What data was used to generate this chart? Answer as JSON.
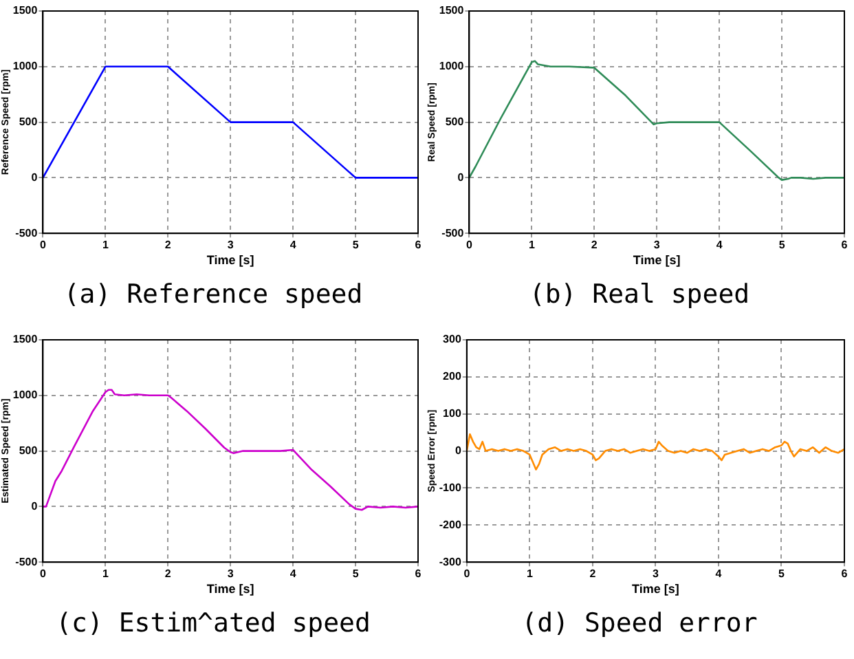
{
  "chart_data": [
    {
      "type": "line",
      "xlabel": "Time [s]",
      "ylabel": "Reference Speed [rpm]",
      "annotations": [
        "(a) Reference speed"
      ],
      "xlim": [
        0,
        6
      ],
      "ylim": [
        -500,
        1500
      ],
      "xticks": [
        0,
        1,
        2,
        3,
        4,
        5,
        6
      ],
      "yticks": [
        -500,
        0,
        500,
        1000,
        1500
      ],
      "grid": true,
      "legend": false,
      "marker": "none",
      "line_style": "solid",
      "series": [
        {
          "color": "#0000ff",
          "x": [
            0,
            1,
            2,
            3,
            4,
            5,
            6
          ],
          "values": [
            0,
            1000,
            1000,
            500,
            500,
            0,
            0
          ]
        }
      ]
    },
    {
      "type": "line",
      "xlabel": "Time [s]",
      "ylabel": "Real Speed [rpm]",
      "annotations": [
        "(b) Real speed"
      ],
      "xlim": [
        0,
        6
      ],
      "ylim": [
        -500,
        1500
      ],
      "xticks": [
        0,
        1,
        2,
        3,
        4,
        5,
        6
      ],
      "yticks": [
        -500,
        0,
        500,
        1000,
        1500
      ],
      "grid": true,
      "legend": false,
      "marker": "none",
      "line_style": "solid",
      "series": [
        {
          "color": "#2e8b57",
          "x": [
            0,
            0.1,
            0.5,
            1.0,
            1.05,
            1.1,
            1.3,
            1.6,
            2.0,
            2.5,
            2.95,
            3.0,
            3.2,
            3.5,
            4.0,
            4.5,
            4.95,
            5.0,
            5.1,
            5.15,
            5.3,
            5.5,
            5.7,
            6.0
          ],
          "values": [
            0,
            100,
            530,
            1040,
            1050,
            1020,
            1000,
            1000,
            990,
            740,
            480,
            490,
            500,
            500,
            500,
            240,
            0,
            -20,
            -10,
            0,
            0,
            -10,
            0,
            0
          ]
        }
      ]
    },
    {
      "type": "line",
      "xlabel": "Time [s]",
      "ylabel": "Estimated Speed [rpm]",
      "annotations": [
        "(c) Estim^ated speed"
      ],
      "xlim": [
        0,
        6
      ],
      "ylim": [
        -500,
        1500
      ],
      "xticks": [
        0,
        1,
        2,
        3,
        4,
        5,
        6
      ],
      "yticks": [
        -500,
        0,
        500,
        1000,
        1500
      ],
      "grid": true,
      "legend": false,
      "marker": "none",
      "line_style": "solid",
      "series": [
        {
          "color": "#cc00cc",
          "x": [
            0,
            0.05,
            0.2,
            0.3,
            0.5,
            0.8,
            1.0,
            1.05,
            1.1,
            1.15,
            1.3,
            1.5,
            1.7,
            2.0,
            2.05,
            2.3,
            2.6,
            2.9,
            3.0,
            3.05,
            3.2,
            3.5,
            3.8,
            4.0,
            4.05,
            4.3,
            4.6,
            4.9,
            5.0,
            5.1,
            5.2,
            5.4,
            5.6,
            5.8,
            6.0
          ],
          "values": [
            0,
            0,
            230,
            320,
            540,
            860,
            1030,
            1050,
            1050,
            1010,
            1000,
            1010,
            1000,
            1000,
            980,
            860,
            700,
            530,
            490,
            480,
            500,
            500,
            500,
            510,
            480,
            330,
            180,
            20,
            -20,
            -30,
            0,
            -10,
            0,
            -10,
            0
          ]
        }
      ]
    },
    {
      "type": "line",
      "xlabel": "Time [s]",
      "ylabel": "Speed Error [rpm]",
      "annotations": [
        "(d) Speed error"
      ],
      "xlim": [
        0,
        6
      ],
      "ylim": [
        -300,
        300
      ],
      "xticks": [
        0,
        1,
        2,
        3,
        4,
        5,
        6
      ],
      "yticks": [
        -300,
        -200,
        -100,
        0,
        100,
        200,
        300
      ],
      "grid": true,
      "legend": false,
      "marker": "none",
      "line_style": "solid",
      "series": [
        {
          "color": "#ff8c00",
          "x": [
            0,
            0.05,
            0.1,
            0.15,
            0.2,
            0.25,
            0.3,
            0.4,
            0.5,
            0.6,
            0.7,
            0.8,
            0.9,
            1.0,
            1.05,
            1.1,
            1.15,
            1.2,
            1.3,
            1.4,
            1.5,
            1.6,
            1.7,
            1.8,
            1.9,
            2.0,
            2.05,
            2.1,
            2.2,
            2.3,
            2.4,
            2.5,
            2.6,
            2.7,
            2.8,
            2.9,
            3.0,
            3.05,
            3.1,
            3.2,
            3.3,
            3.4,
            3.5,
            3.6,
            3.7,
            3.8,
            3.9,
            4.0,
            4.05,
            4.1,
            4.2,
            4.3,
            4.4,
            4.5,
            4.6,
            4.7,
            4.8,
            4.9,
            5.0,
            5.05,
            5.1,
            5.15,
            5.2,
            5.3,
            5.4,
            5.5,
            5.6,
            5.7,
            5.8,
            5.9,
            6.0
          ],
          "values": [
            0,
            45,
            25,
            10,
            5,
            25,
            0,
            5,
            0,
            5,
            0,
            5,
            0,
            -10,
            -30,
            -50,
            -35,
            -10,
            5,
            10,
            0,
            5,
            0,
            5,
            0,
            -10,
            -25,
            -20,
            0,
            5,
            0,
            5,
            -5,
            0,
            5,
            0,
            5,
            25,
            15,
            0,
            -5,
            0,
            -5,
            5,
            0,
            5,
            0,
            -15,
            -25,
            -10,
            -5,
            0,
            5,
            -5,
            0,
            5,
            0,
            10,
            15,
            25,
            20,
            0,
            -15,
            5,
            0,
            10,
            -5,
            10,
            0,
            -5,
            5
          ]
        }
      ]
    }
  ]
}
